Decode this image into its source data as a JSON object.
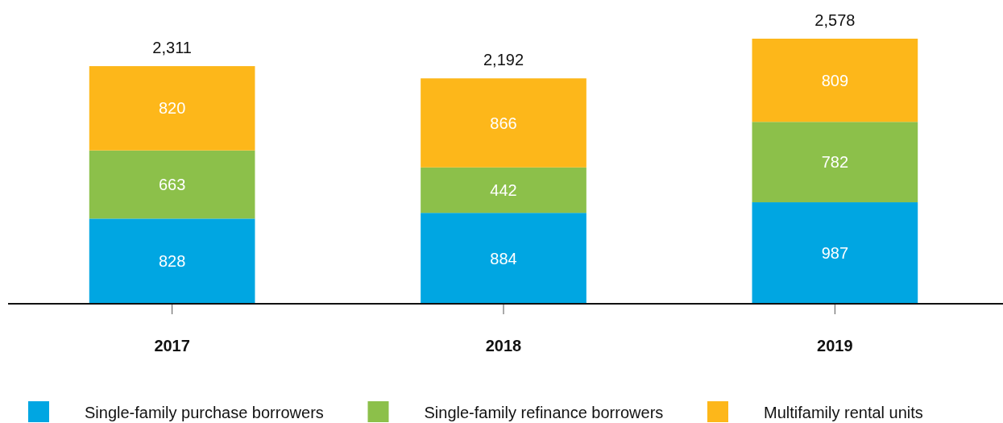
{
  "chart_data": {
    "type": "bar",
    "stacked": true,
    "categories": [
      "2017",
      "2018",
      "2019"
    ],
    "series": [
      {
        "name": "Single-family purchase borrowers",
        "color": "#00a6e2",
        "values": [
          828,
          884,
          987
        ]
      },
      {
        "name": "Single-family refinance borrowers",
        "color": "#8cc04a",
        "values": [
          663,
          442,
          782
        ]
      },
      {
        "name": "Multifamily rental units",
        "color": "#fdb71a",
        "values": [
          820,
          866,
          809
        ]
      }
    ],
    "data_labels": true,
    "totals": [
      "2,311",
      "2,192",
      "2,578"
    ],
    "legend": "bottom"
  }
}
